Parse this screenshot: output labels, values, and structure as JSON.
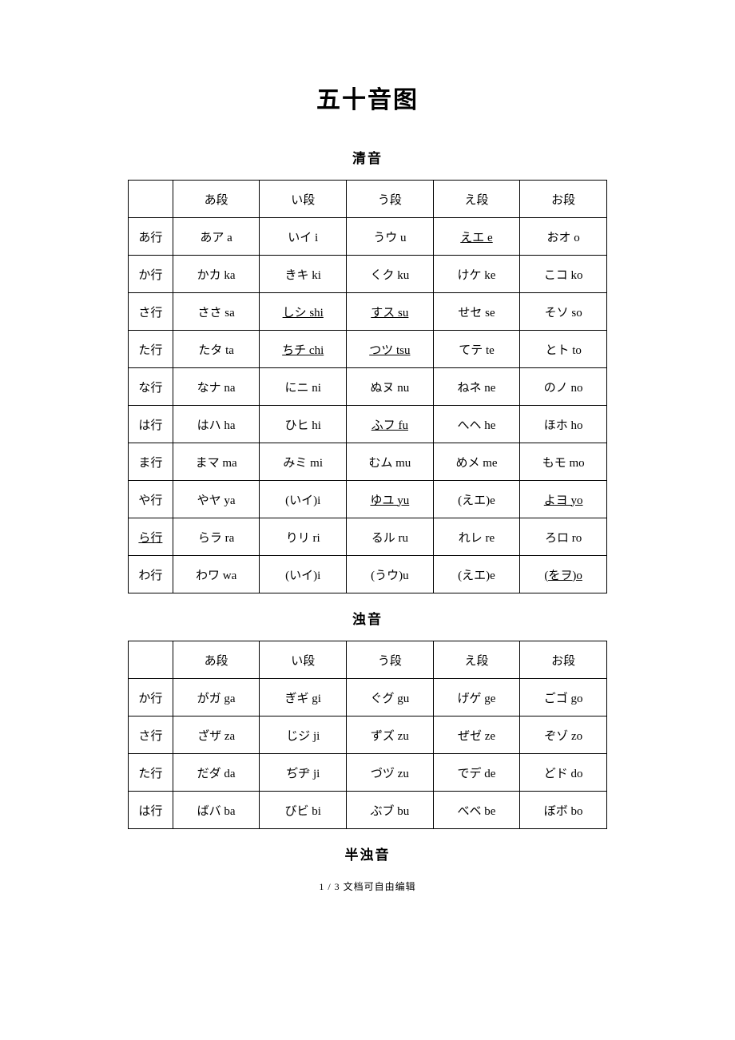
{
  "title": "五十音图",
  "section_seion": "清音",
  "section_dakuon": "浊音",
  "section_handakuon": "半浊音",
  "footer": "1 / 3 文档可自由编辑",
  "columns": [
    "あ段",
    "い段",
    "う段",
    "え段",
    "お段"
  ],
  "seion": {
    "rows": [
      {
        "label": "あ行",
        "cells": [
          {
            "t": "あア a"
          },
          {
            "t": "いイ i"
          },
          {
            "t": "うウ u"
          },
          {
            "t": "えエ e",
            "u": true
          },
          {
            "t": "おオ o"
          }
        ]
      },
      {
        "label": "か行",
        "cells": [
          {
            "t": "かカ ka"
          },
          {
            "t": "きキ ki"
          },
          {
            "t": "くク ku"
          },
          {
            "t": "けケ ke"
          },
          {
            "t": "こコ ko"
          }
        ]
      },
      {
        "label": "さ行",
        "cells": [
          {
            "t": "ささ sa"
          },
          {
            "t": "しシ shi",
            "u": true
          },
          {
            "t": "すス su",
            "u": true
          },
          {
            "t": "せセ se"
          },
          {
            "t": "そソ so"
          }
        ]
      },
      {
        "label": "た行",
        "cells": [
          {
            "t": "たタ ta"
          },
          {
            "t": "ちチ chi",
            "u": true
          },
          {
            "t": "つツ tsu",
            "u": true
          },
          {
            "t": "てテ te"
          },
          {
            "t": "とト to"
          }
        ]
      },
      {
        "label": "な行",
        "cells": [
          {
            "t": "なナ na"
          },
          {
            "t": "にニ ni"
          },
          {
            "t": "ぬヌ nu"
          },
          {
            "t": "ねネ ne"
          },
          {
            "t": "のノ no"
          }
        ]
      },
      {
        "label": "は行",
        "cells": [
          {
            "t": "はハ ha"
          },
          {
            "t": "ひヒ hi"
          },
          {
            "t": "ふフ fu",
            "u": true
          },
          {
            "t": "へヘ he"
          },
          {
            "t": "ほホ ho"
          }
        ]
      },
      {
        "label": "ま行",
        "cells": [
          {
            "t": "まマ ma"
          },
          {
            "t": "みミ mi"
          },
          {
            "t": "むム mu"
          },
          {
            "t": "めメ me"
          },
          {
            "t": "もモ mo"
          }
        ]
      },
      {
        "label": "や行",
        "cells": [
          {
            "t": "やヤ ya"
          },
          {
            "t": "(いイ)i"
          },
          {
            "t": "ゆユ yu",
            "u": true
          },
          {
            "t": "(えエ)e"
          },
          {
            "t": "よヨ yo",
            "u": true
          }
        ]
      },
      {
        "label": "ら行",
        "label_u": true,
        "cells": [
          {
            "t": "らラ ra"
          },
          {
            "t": "りリ ri"
          },
          {
            "t": "るル ru"
          },
          {
            "t": "れレ re"
          },
          {
            "t": "ろロ ro"
          }
        ]
      },
      {
        "label": "わ行",
        "cells": [
          {
            "t": "わワ wa"
          },
          {
            "t": "(いイ)i"
          },
          {
            "t": "(うウ)u"
          },
          {
            "t": "(えエ)e"
          },
          {
            "t": "(をヲ)o",
            "u": true
          }
        ]
      }
    ]
  },
  "dakuon": {
    "rows": [
      {
        "label": "か行",
        "cells": [
          {
            "t": "がガ ga"
          },
          {
            "t": "ぎギ gi"
          },
          {
            "t": "ぐグ gu"
          },
          {
            "t": "げゲ ge"
          },
          {
            "t": "ごゴ go"
          }
        ]
      },
      {
        "label": "さ行",
        "cells": [
          {
            "t": "ざザ za"
          },
          {
            "t": "じジ ji"
          },
          {
            "t": "ずズ zu"
          },
          {
            "t": "ぜゼ ze"
          },
          {
            "t": "ぞゾ zo"
          }
        ]
      },
      {
        "label": "た行",
        "cells": [
          {
            "t": "だダ da"
          },
          {
            "t": "ぢヂ ji"
          },
          {
            "t": "づヅ zu"
          },
          {
            "t": "でデ de"
          },
          {
            "t": "どド do"
          }
        ]
      },
      {
        "label": "は行",
        "cells": [
          {
            "t": "ばバ ba"
          },
          {
            "t": "びビ bi"
          },
          {
            "t": "ぶブ bu"
          },
          {
            "t": "べベ be"
          },
          {
            "t": "ぼボ bo"
          }
        ]
      }
    ]
  }
}
